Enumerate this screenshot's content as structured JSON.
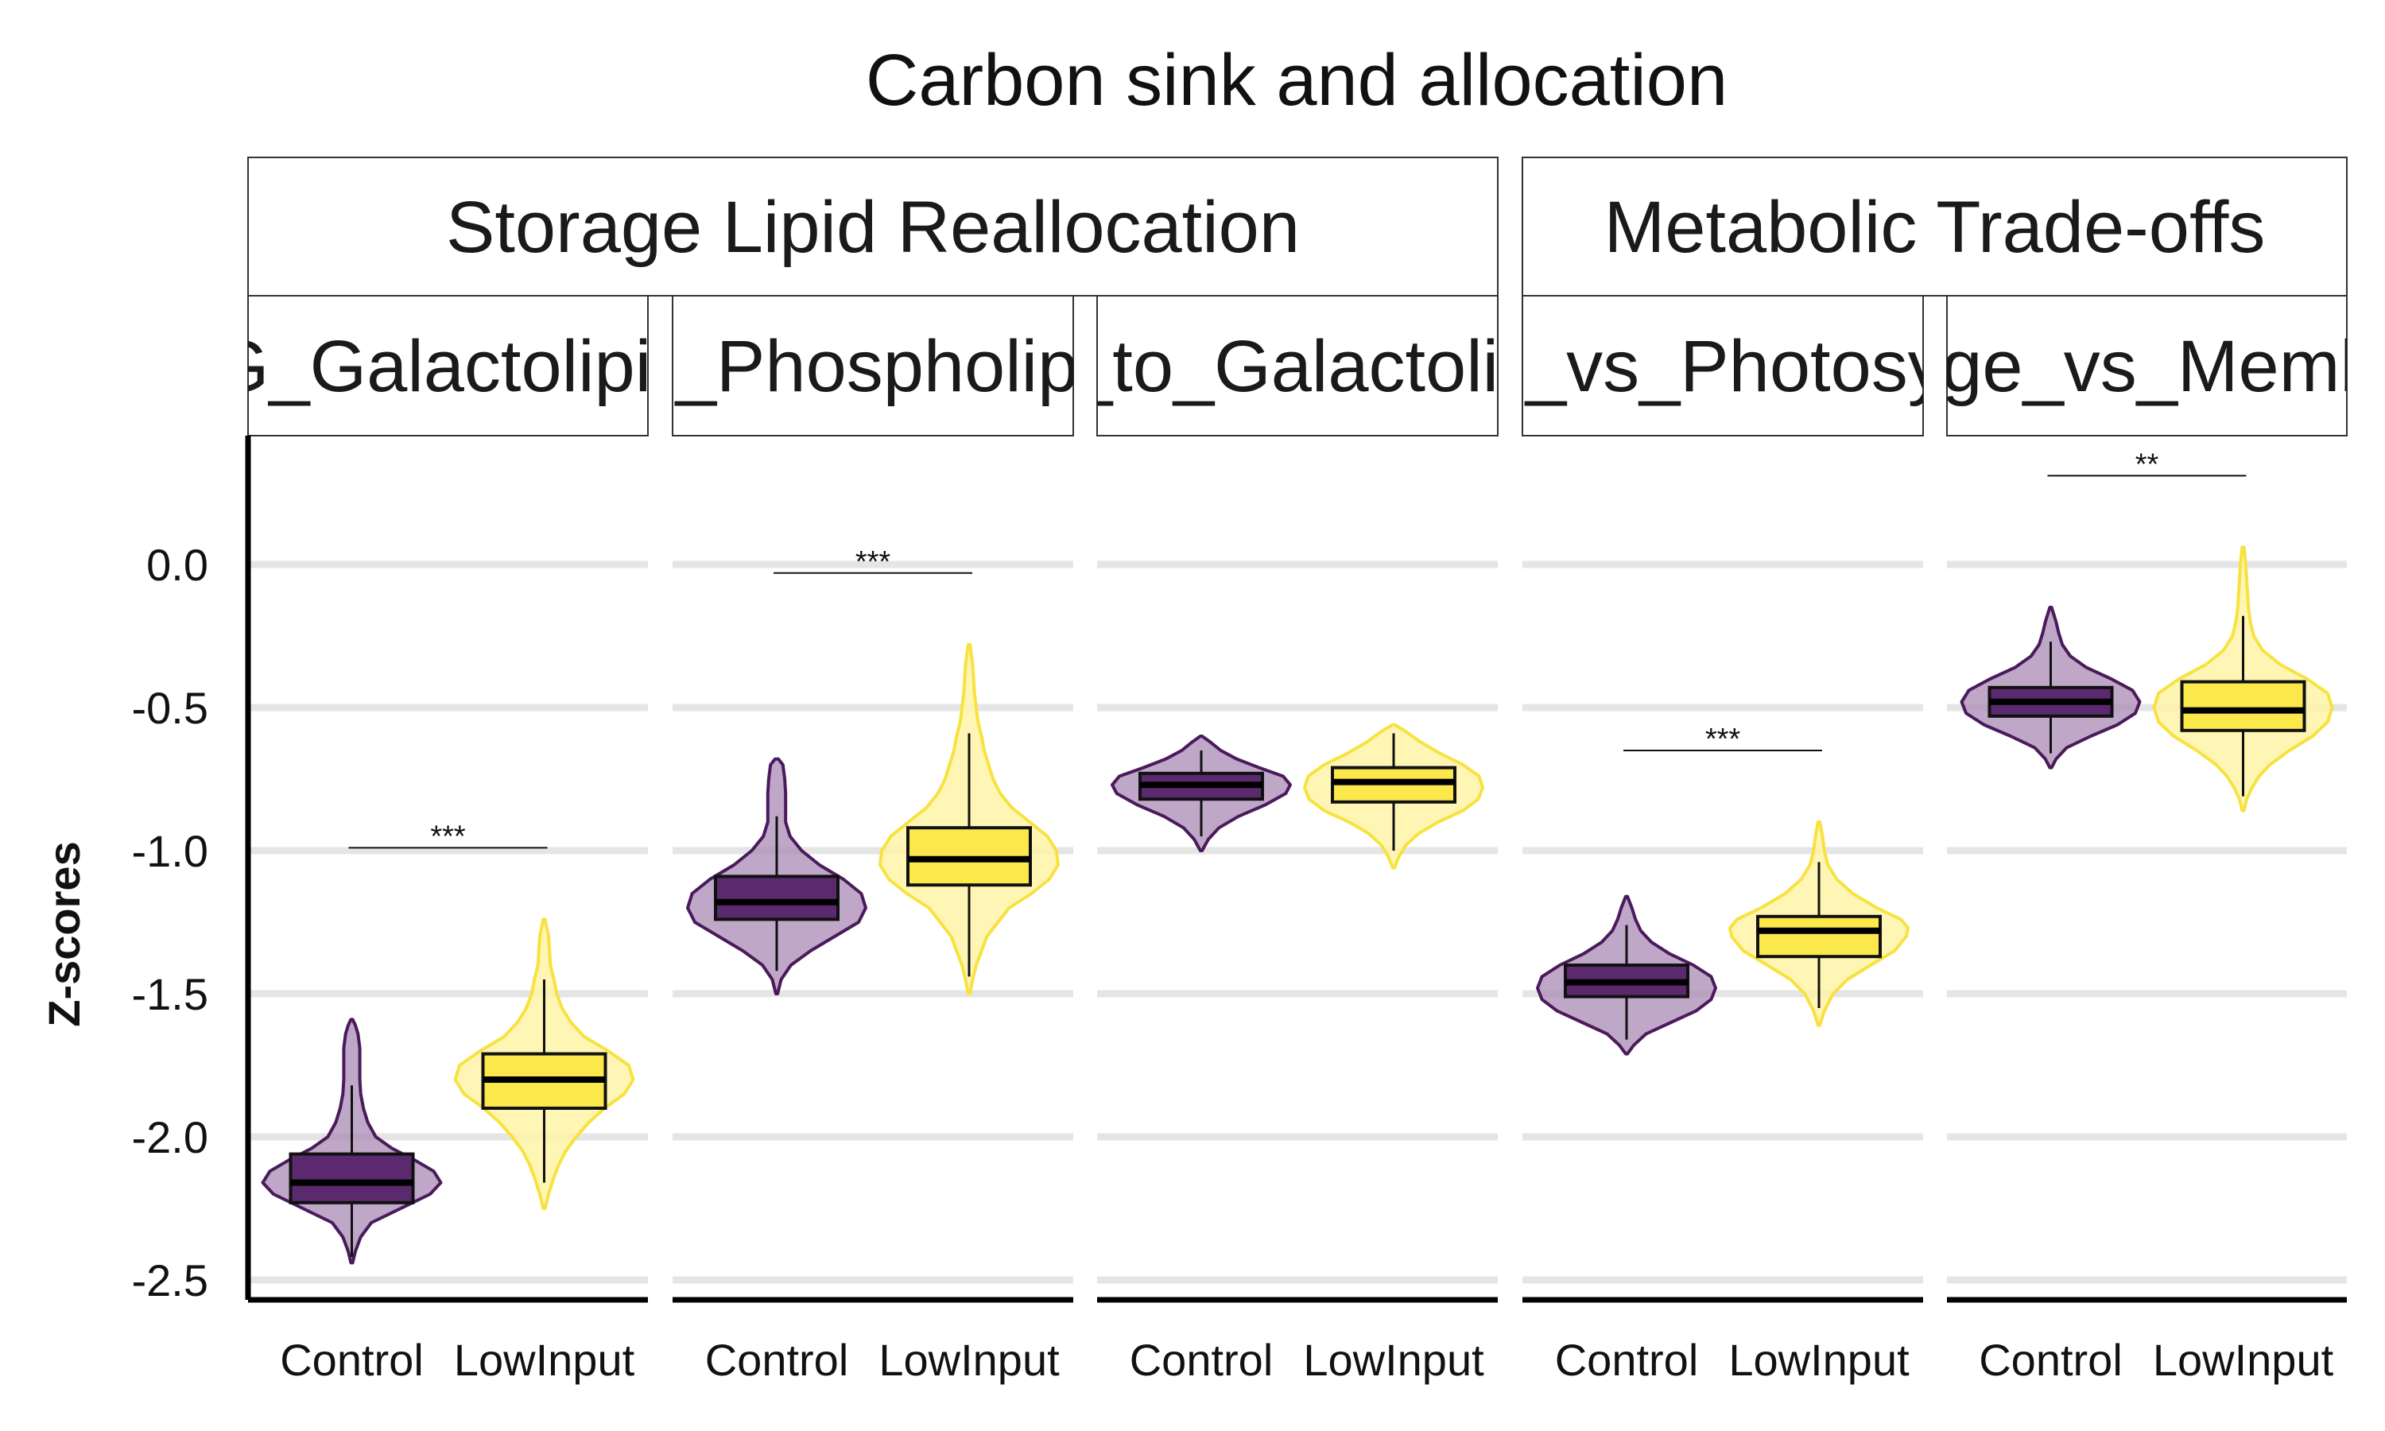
{
  "chart_data": {
    "type": "violin",
    "title": "Carbon sink and allocation",
    "ylabel": "Z-scores",
    "xlabel": "",
    "ylim": [
      -2.58,
      0.45
    ],
    "yticks": [
      0.0,
      -0.5,
      -1.0,
      -1.5,
      -2.0,
      -2.5
    ],
    "ytick_labels": [
      "0.0",
      "-0.5",
      "-1.0",
      "-1.5",
      "-2.0",
      "-2.5"
    ],
    "grid": "horizontal",
    "categories": [
      "Control",
      "LowInput"
    ],
    "colors": {
      "Control": {
        "fill": "#a98ab4",
        "fill_opacity": 0.75,
        "line": "#4a1a5c",
        "box": "#5b2a6e"
      },
      "LowInput": {
        "fill": "#fff3a8",
        "fill_opacity": 0.85,
        "line": "#f7e23e",
        "box": "#fbe84a"
      },
      "grid": "#e5e5e5"
    },
    "groups": [
      {
        "label": "Storage Lipid Reallocation",
        "panels": [
          0,
          1,
          2
        ]
      },
      {
        "label": "Metabolic Trade-offs",
        "panels": [
          3,
          4
        ]
      }
    ],
    "panels": [
      {
        "label": "TG_Galactolipids",
        "significance": {
          "text": "***",
          "y": -0.99
        },
        "series": [
          {
            "name": "Control",
            "min": -2.44,
            "max": -1.59,
            "q1": -2.23,
            "median": -2.16,
            "q3": -2.06,
            "whisker_low": -2.42,
            "whisker_high": -1.82,
            "profile": [
              [
                -2.44,
                0.01
              ],
              [
                -2.4,
                0.04
              ],
              [
                -2.35,
                0.1
              ],
              [
                -2.3,
                0.22
              ],
              [
                -2.25,
                0.55
              ],
              [
                -2.2,
                0.88
              ],
              [
                -2.16,
                1.0
              ],
              [
                -2.12,
                0.92
              ],
              [
                -2.08,
                0.7
              ],
              [
                -2.04,
                0.45
              ],
              [
                -2.0,
                0.27
              ],
              [
                -1.95,
                0.18
              ],
              [
                -1.9,
                0.13
              ],
              [
                -1.85,
                0.1
              ],
              [
                -1.8,
                0.09
              ],
              [
                -1.74,
                0.09
              ],
              [
                -1.69,
                0.09
              ],
              [
                -1.64,
                0.07
              ],
              [
                -1.61,
                0.04
              ],
              [
                -1.59,
                0.01
              ]
            ]
          },
          {
            "name": "LowInput",
            "min": -2.25,
            "max": -1.24,
            "q1": -1.9,
            "median": -1.8,
            "q3": -1.71,
            "whisker_low": -2.16,
            "whisker_high": -1.45,
            "profile": [
              [
                -2.25,
                0.01
              ],
              [
                -2.2,
                0.05
              ],
              [
                -2.15,
                0.1
              ],
              [
                -2.1,
                0.16
              ],
              [
                -2.05,
                0.24
              ],
              [
                -2.0,
                0.36
              ],
              [
                -1.95,
                0.5
              ],
              [
                -1.9,
                0.68
              ],
              [
                -1.85,
                0.9
              ],
              [
                -1.8,
                1.0
              ],
              [
                -1.75,
                0.95
              ],
              [
                -1.7,
                0.72
              ],
              [
                -1.65,
                0.45
              ],
              [
                -1.6,
                0.3
              ],
              [
                -1.55,
                0.2
              ],
              [
                -1.5,
                0.14
              ],
              [
                -1.45,
                0.11
              ],
              [
                -1.4,
                0.07
              ],
              [
                -1.35,
                0.06
              ],
              [
                -1.3,
                0.05
              ],
              [
                -1.24,
                0.01
              ]
            ]
          }
        ]
      },
      {
        "label": "TG_Phospholipids",
        "significance": {
          "text": "***",
          "y": -0.03
        },
        "series": [
          {
            "name": "Control",
            "min": -1.5,
            "max": -0.68,
            "q1": -1.24,
            "median": -1.18,
            "q3": -1.09,
            "whisker_low": -1.42,
            "whisker_high": -0.88,
            "profile": [
              [
                -1.5,
                0.01
              ],
              [
                -1.45,
                0.05
              ],
              [
                -1.4,
                0.16
              ],
              [
                -1.35,
                0.38
              ],
              [
                -1.3,
                0.65
              ],
              [
                -1.25,
                0.92
              ],
              [
                -1.2,
                1.0
              ],
              [
                -1.15,
                0.95
              ],
              [
                -1.1,
                0.75
              ],
              [
                -1.05,
                0.48
              ],
              [
                -1.0,
                0.28
              ],
              [
                -0.95,
                0.15
              ],
              [
                -0.9,
                0.1
              ],
              [
                -0.85,
                0.1
              ],
              [
                -0.8,
                0.1
              ],
              [
                -0.75,
                0.09
              ],
              [
                -0.7,
                0.07
              ],
              [
                -0.68,
                0.02
              ]
            ]
          },
          {
            "name": "LowInput",
            "min": -1.5,
            "max": -0.28,
            "q1": -1.12,
            "median": -1.03,
            "q3": -0.92,
            "whisker_low": -1.44,
            "whisker_high": -0.59,
            "profile": [
              [
                -1.5,
                0.01
              ],
              [
                -1.45,
                0.04
              ],
              [
                -1.4,
                0.08
              ],
              [
                -1.3,
                0.2
              ],
              [
                -1.2,
                0.45
              ],
              [
                -1.15,
                0.7
              ],
              [
                -1.1,
                0.9
              ],
              [
                -1.05,
                1.0
              ],
              [
                -1.0,
                0.98
              ],
              [
                -0.95,
                0.88
              ],
              [
                -0.9,
                0.68
              ],
              [
                -0.85,
                0.48
              ],
              [
                -0.8,
                0.35
              ],
              [
                -0.75,
                0.27
              ],
              [
                -0.7,
                0.22
              ],
              [
                -0.65,
                0.17
              ],
              [
                -0.6,
                0.14
              ],
              [
                -0.55,
                0.1
              ],
              [
                -0.5,
                0.08
              ],
              [
                -0.45,
                0.06
              ],
              [
                -0.4,
                0.05
              ],
              [
                -0.35,
                0.04
              ],
              [
                -0.28,
                0.01
              ]
            ]
          }
        ]
      },
      {
        "label": "DG_to_Galactolipids",
        "significance": null,
        "series": [
          {
            "name": "Control",
            "min": -1.0,
            "max": -0.6,
            "q1": -0.82,
            "median": -0.77,
            "q3": -0.73,
            "whisker_low": -0.95,
            "whisker_high": -0.65,
            "profile": [
              [
                -1.0,
                0.01
              ],
              [
                -0.96,
                0.08
              ],
              [
                -0.92,
                0.2
              ],
              [
                -0.88,
                0.42
              ],
              [
                -0.84,
                0.72
              ],
              [
                -0.8,
                0.95
              ],
              [
                -0.77,
                1.0
              ],
              [
                -0.74,
                0.92
              ],
              [
                -0.71,
                0.65
              ],
              [
                -0.68,
                0.4
              ],
              [
                -0.65,
                0.22
              ],
              [
                -0.62,
                0.1
              ],
              [
                -0.6,
                0.01
              ]
            ]
          },
          {
            "name": "LowInput",
            "min": -1.06,
            "max": -0.56,
            "q1": -0.83,
            "median": -0.76,
            "q3": -0.71,
            "whisker_low": -1.0,
            "whisker_high": -0.59,
            "profile": [
              [
                -1.06,
                0.01
              ],
              [
                -1.02,
                0.06
              ],
              [
                -0.98,
                0.14
              ],
              [
                -0.94,
                0.28
              ],
              [
                -0.9,
                0.5
              ],
              [
                -0.86,
                0.78
              ],
              [
                -0.82,
                0.95
              ],
              [
                -0.78,
                1.0
              ],
              [
                -0.74,
                0.96
              ],
              [
                -0.7,
                0.78
              ],
              [
                -0.66,
                0.52
              ],
              [
                -0.62,
                0.3
              ],
              [
                -0.58,
                0.12
              ],
              [
                -0.56,
                0.01
              ]
            ]
          }
        ]
      },
      {
        "label": "Storage_vs_Photosynthesis",
        "significance": {
          "text": "***",
          "y": -0.65
        },
        "series": [
          {
            "name": "Control",
            "min": -1.71,
            "max": -1.16,
            "q1": -1.51,
            "median": -1.46,
            "q3": -1.4,
            "whisker_low": -1.66,
            "whisker_high": -1.26,
            "profile": [
              [
                -1.71,
                0.01
              ],
              [
                -1.68,
                0.08
              ],
              [
                -1.64,
                0.22
              ],
              [
                -1.6,
                0.5
              ],
              [
                -1.56,
                0.78
              ],
              [
                -1.52,
                0.95
              ],
              [
                -1.48,
                1.0
              ],
              [
                -1.44,
                0.95
              ],
              [
                -1.4,
                0.75
              ],
              [
                -1.36,
                0.48
              ],
              [
                -1.32,
                0.28
              ],
              [
                -1.28,
                0.16
              ],
              [
                -1.24,
                0.1
              ],
              [
                -1.2,
                0.06
              ],
              [
                -1.16,
                0.01
              ]
            ]
          },
          {
            "name": "LowInput",
            "min": -1.61,
            "max": -0.9,
            "q1": -1.37,
            "median": -1.28,
            "q3": -1.23,
            "whisker_low": -1.55,
            "whisker_high": -1.04,
            "profile": [
              [
                -1.61,
                0.01
              ],
              [
                -1.56,
                0.06
              ],
              [
                -1.5,
                0.16
              ],
              [
                -1.45,
                0.32
              ],
              [
                -1.4,
                0.58
              ],
              [
                -1.35,
                0.85
              ],
              [
                -1.3,
                0.98
              ],
              [
                -1.27,
                1.0
              ],
              [
                -1.24,
                0.92
              ],
              [
                -1.2,
                0.65
              ],
              [
                -1.15,
                0.38
              ],
              [
                -1.1,
                0.2
              ],
              [
                -1.05,
                0.1
              ],
              [
                -1.0,
                0.06
              ],
              [
                -0.95,
                0.04
              ],
              [
                -0.9,
                0.01
              ]
            ]
          }
        ]
      },
      {
        "label": "Storage_vs_Membrane",
        "significance": {
          "text": "**",
          "y": 0.31
        },
        "series": [
          {
            "name": "Control",
            "min": -0.71,
            "max": -0.15,
            "q1": -0.53,
            "median": -0.48,
            "q3": -0.43,
            "whisker_low": -0.66,
            "whisker_high": -0.27,
            "profile": [
              [
                -0.71,
                0.01
              ],
              [
                -0.68,
                0.06
              ],
              [
                -0.64,
                0.18
              ],
              [
                -0.6,
                0.45
              ],
              [
                -0.56,
                0.75
              ],
              [
                -0.52,
                0.95
              ],
              [
                -0.48,
                1.0
              ],
              [
                -0.44,
                0.92
              ],
              [
                -0.4,
                0.68
              ],
              [
                -0.36,
                0.4
              ],
              [
                -0.32,
                0.22
              ],
              [
                -0.28,
                0.13
              ],
              [
                -0.24,
                0.09
              ],
              [
                -0.2,
                0.06
              ],
              [
                -0.15,
                0.01
              ]
            ]
          },
          {
            "name": "LowInput",
            "min": -0.86,
            "max": 0.06,
            "q1": -0.58,
            "median": -0.51,
            "q3": -0.41,
            "whisker_low": -0.81,
            "whisker_high": -0.18,
            "profile": [
              [
                -0.86,
                0.01
              ],
              [
                -0.82,
                0.04
              ],
              [
                -0.78,
                0.1
              ],
              [
                -0.74,
                0.18
              ],
              [
                -0.7,
                0.3
              ],
              [
                -0.65,
                0.52
              ],
              [
                -0.6,
                0.78
              ],
              [
                -0.55,
                0.95
              ],
              [
                -0.5,
                1.0
              ],
              [
                -0.45,
                0.95
              ],
              [
                -0.4,
                0.72
              ],
              [
                -0.35,
                0.42
              ],
              [
                -0.3,
                0.22
              ],
              [
                -0.25,
                0.12
              ],
              [
                -0.2,
                0.08
              ],
              [
                -0.15,
                0.06
              ],
              [
                -0.1,
                0.05
              ],
              [
                -0.05,
                0.04
              ],
              [
                0.0,
                0.03
              ],
              [
                0.06,
                0.01
              ]
            ]
          }
        ]
      }
    ]
  }
}
